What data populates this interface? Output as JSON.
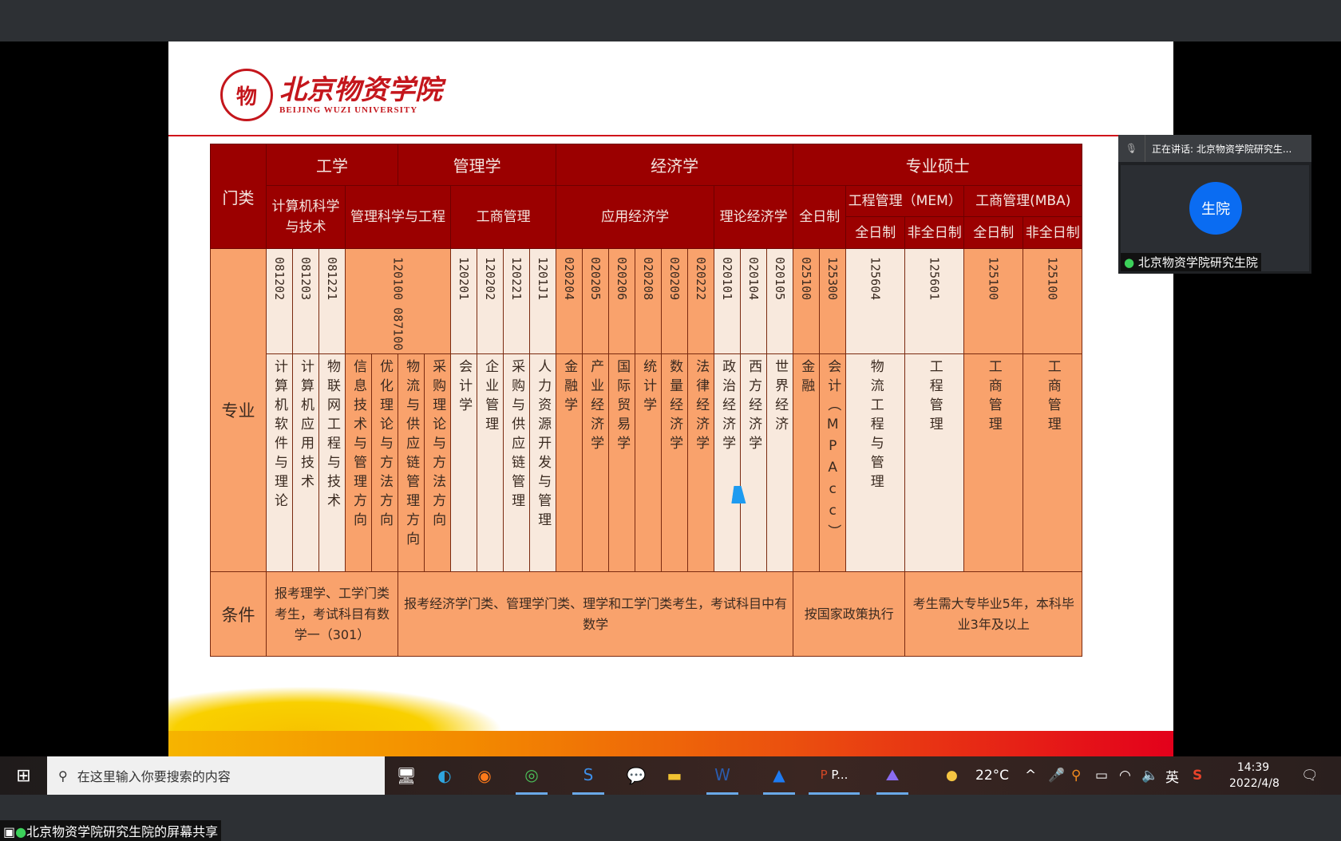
{
  "slide": {
    "logo": {
      "cn": "北京物资学院",
      "en": "BEIJING WUZI UNIVERSITY"
    },
    "table": {
      "corner": "门类",
      "major_label": "专业",
      "condition_label": "条件",
      "categories": [
        "工学",
        "管理学",
        "经济学",
        "专业硕士"
      ],
      "disciplines": [
        "计算机科学与技术",
        "管理科学与工程",
        "工商管理",
        "应用经济学",
        "理论经济学",
        "全日制",
        "工程管理（MEM）",
        "工商管理(MBA)"
      ],
      "study_modes": [
        "全日制",
        "非全日制",
        "全日制",
        "非全日制"
      ],
      "codes": [
        "081202",
        "081203",
        "081221",
        "120100 087100",
        "120201",
        "120202",
        "120221",
        "1201J1",
        "020204",
        "020205",
        "020206",
        "020208",
        "020209",
        "020222",
        "020101",
        "020104",
        "020105",
        "025100",
        "125300",
        "125604",
        "125601",
        "125100",
        "125100"
      ],
      "names": [
        "计算机软件与理论",
        "计算机应用技术",
        "物联网工程与技术",
        "信息技术与管理方向",
        "优化理论与方法方向",
        "物流与供应链管理方向",
        "采购理论与方法方向",
        "会计学",
        "企业管理",
        "采购与供应链管理",
        "人力资源开发与管理",
        "金融学",
        "产业经济学",
        "国际贸易学",
        "统计学",
        "数量经济学",
        "法律经济学",
        "政治经济学",
        "西方经济学",
        "世界经济",
        "金融",
        "会计（MPAcc）",
        "物流工程与管理",
        "工程管理",
        "工商管理",
        "工商管理"
      ],
      "conditions": [
        "报考理学、工学门类考生，考试科目有数学一（301）",
        "报考经济学门类、管理学门类、理学和工学门类考生，考试科目中有数学",
        "按国家政策执行",
        "考生需大专毕业5年，本科毕业3年及以上"
      ]
    }
  },
  "meeting": {
    "speaking": "正在讲话: 北京物资学院研究生...",
    "avatar_text": "生院",
    "participant": "北京物资学院研究生院",
    "share_label": "北京物资学院研究生院的屏幕共享"
  },
  "taskbar": {
    "search_placeholder": "在这里输入你要搜索的内容",
    "ppt_label": "P...",
    "temperature": "22°C",
    "ime": "英",
    "time": "14:39",
    "date": "2022/4/8"
  },
  "colors": {
    "header": "#9b0000",
    "orange": "#f9a26c",
    "light": "#f8e9dd",
    "accent_red": "#d0121b",
    "avatar": "#0a6cf2"
  }
}
